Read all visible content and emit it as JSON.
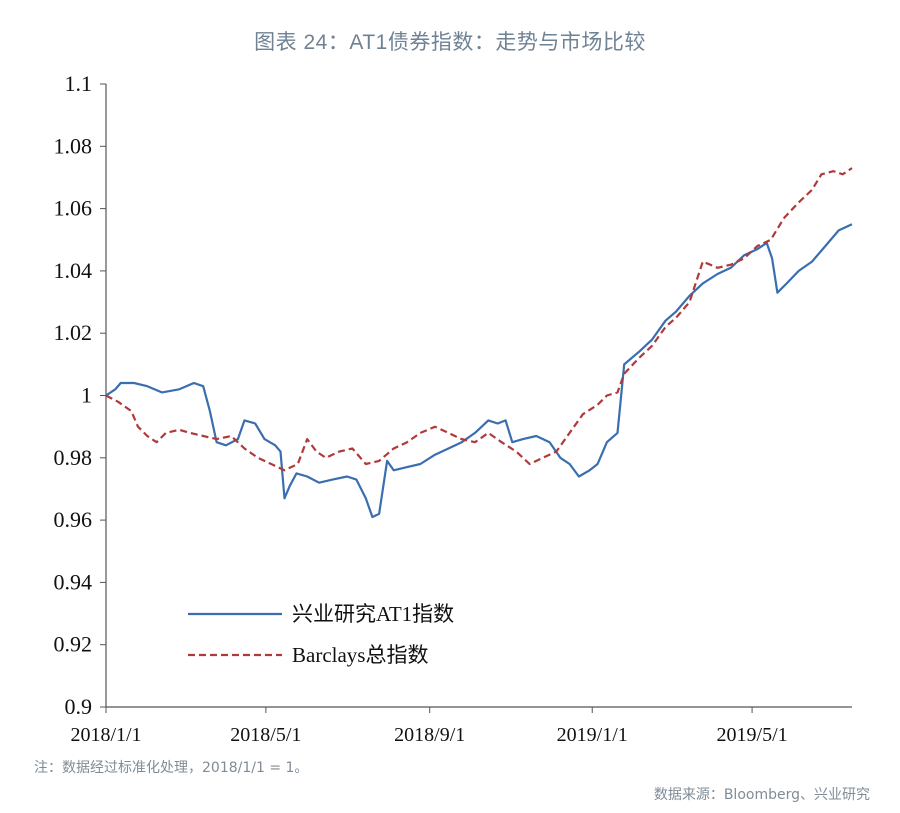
{
  "title": "图表 24：AT1债券指数：走势与市场比较",
  "note": "注：数据经过标准化处理，2018/1/1 = 1。",
  "source": "数据来源：Bloomberg、兴业研究",
  "colors": {
    "series1": "#3a6eb0",
    "series2": "#b03a3a",
    "axis": "#555555",
    "title": "#6f8294"
  },
  "chart_data": {
    "type": "line",
    "xlabel": "",
    "ylabel": "",
    "ylim": [
      0.9,
      1.1
    ],
    "yticks": [
      0.9,
      0.92,
      0.94,
      0.96,
      0.98,
      1,
      1.02,
      1.04,
      1.06,
      1.08,
      1.1
    ],
    "ytick_labels": [
      "0.9",
      "0.92",
      "0.94",
      "0.96",
      "0.98",
      "1",
      "1.02",
      "1.04",
      "1.06",
      "1.08",
      "1.1"
    ],
    "xlim": [
      "2018-01-01",
      "2019-07-15"
    ],
    "xticks": [
      "2018-01-01",
      "2018-05-01",
      "2018-09-01",
      "2019-01-01",
      "2019-05-01"
    ],
    "xtick_labels": [
      "2018/1/1",
      "2018/5/1",
      "2018/9/1",
      "2019/1/1",
      "2019/5/1"
    ],
    "grid": false,
    "legend": "bottom-left",
    "series": [
      {
        "name": "兴业研究AT1指数",
        "style": "solid",
        "points": [
          [
            "2018-01-01",
            1.0
          ],
          [
            "2018-01-08",
            1.002
          ],
          [
            "2018-01-12",
            1.004
          ],
          [
            "2018-01-22",
            1.004
          ],
          [
            "2018-02-01",
            1.003
          ],
          [
            "2018-02-12",
            1.001
          ],
          [
            "2018-02-25",
            1.002
          ],
          [
            "2018-03-08",
            1.004
          ],
          [
            "2018-03-15",
            1.003
          ],
          [
            "2018-03-20",
            0.995
          ],
          [
            "2018-03-25",
            0.985
          ],
          [
            "2018-04-01",
            0.984
          ],
          [
            "2018-04-10",
            0.986
          ],
          [
            "2018-04-15",
            0.992
          ],
          [
            "2018-04-23",
            0.991
          ],
          [
            "2018-04-30",
            0.986
          ],
          [
            "2018-05-08",
            0.984
          ],
          [
            "2018-05-12",
            0.982
          ],
          [
            "2018-05-15",
            0.967
          ],
          [
            "2018-05-19",
            0.971
          ],
          [
            "2018-05-24",
            0.975
          ],
          [
            "2018-06-01",
            0.974
          ],
          [
            "2018-06-10",
            0.972
          ],
          [
            "2018-06-20",
            0.973
          ],
          [
            "2018-07-01",
            0.974
          ],
          [
            "2018-07-08",
            0.973
          ],
          [
            "2018-07-15",
            0.967
          ],
          [
            "2018-07-20",
            0.961
          ],
          [
            "2018-07-25",
            0.962
          ],
          [
            "2018-07-31",
            0.979
          ],
          [
            "2018-08-05",
            0.976
          ],
          [
            "2018-08-15",
            0.977
          ],
          [
            "2018-08-25",
            0.978
          ],
          [
            "2018-09-05",
            0.981
          ],
          [
            "2018-09-15",
            0.983
          ],
          [
            "2018-09-25",
            0.985
          ],
          [
            "2018-10-05",
            0.988
          ],
          [
            "2018-10-15",
            0.992
          ],
          [
            "2018-10-22",
            0.991
          ],
          [
            "2018-10-28",
            0.992
          ],
          [
            "2018-11-02",
            0.985
          ],
          [
            "2018-11-10",
            0.986
          ],
          [
            "2018-11-20",
            0.987
          ],
          [
            "2018-11-30",
            0.985
          ],
          [
            "2018-12-08",
            0.98
          ],
          [
            "2018-12-15",
            0.978
          ],
          [
            "2018-12-22",
            0.974
          ],
          [
            "2018-12-30",
            0.976
          ],
          [
            "2019-01-05",
            0.978
          ],
          [
            "2019-01-12",
            0.985
          ],
          [
            "2019-01-20",
            0.988
          ],
          [
            "2019-01-25",
            1.01
          ],
          [
            "2019-02-05",
            1.014
          ],
          [
            "2019-02-15",
            1.018
          ],
          [
            "2019-02-25",
            1.024
          ],
          [
            "2019-03-05",
            1.027
          ],
          [
            "2019-03-15",
            1.032
          ],
          [
            "2019-03-25",
            1.036
          ],
          [
            "2019-04-05",
            1.039
          ],
          [
            "2019-04-15",
            1.041
          ],
          [
            "2019-04-25",
            1.045
          ],
          [
            "2019-05-05",
            1.047
          ],
          [
            "2019-05-12",
            1.049
          ],
          [
            "2019-05-16",
            1.044
          ],
          [
            "2019-05-20",
            1.033
          ],
          [
            "2019-05-27",
            1.036
          ],
          [
            "2019-06-05",
            1.04
          ],
          [
            "2019-06-15",
            1.043
          ],
          [
            "2019-06-25",
            1.048
          ],
          [
            "2019-07-05",
            1.053
          ],
          [
            "2019-07-15",
            1.055
          ]
        ]
      },
      {
        "name": "Barclays总指数",
        "style": "dashed",
        "points": [
          [
            "2018-01-01",
            1.0
          ],
          [
            "2018-01-10",
            0.998
          ],
          [
            "2018-01-20",
            0.995
          ],
          [
            "2018-01-25",
            0.99
          ],
          [
            "2018-02-01",
            0.987
          ],
          [
            "2018-02-08",
            0.985
          ],
          [
            "2018-02-15",
            0.988
          ],
          [
            "2018-02-25",
            0.989
          ],
          [
            "2018-03-05",
            0.988
          ],
          [
            "2018-03-15",
            0.987
          ],
          [
            "2018-03-25",
            0.986
          ],
          [
            "2018-04-05",
            0.987
          ],
          [
            "2018-04-15",
            0.983
          ],
          [
            "2018-04-25",
            0.98
          ],
          [
            "2018-05-05",
            0.978
          ],
          [
            "2018-05-15",
            0.976
          ],
          [
            "2018-05-25",
            0.978
          ],
          [
            "2018-06-01",
            0.986
          ],
          [
            "2018-06-08",
            0.982
          ],
          [
            "2018-06-15",
            0.98
          ],
          [
            "2018-06-25",
            0.982
          ],
          [
            "2018-07-05",
            0.983
          ],
          [
            "2018-07-15",
            0.978
          ],
          [
            "2018-07-25",
            0.979
          ],
          [
            "2018-08-05",
            0.983
          ],
          [
            "2018-08-15",
            0.985
          ],
          [
            "2018-08-25",
            0.988
          ],
          [
            "2018-09-05",
            0.99
          ],
          [
            "2018-09-15",
            0.988
          ],
          [
            "2018-09-25",
            0.986
          ],
          [
            "2018-10-05",
            0.985
          ],
          [
            "2018-10-15",
            0.988
          ],
          [
            "2018-10-25",
            0.985
          ],
          [
            "2018-11-05",
            0.982
          ],
          [
            "2018-11-15",
            0.978
          ],
          [
            "2018-11-25",
            0.98
          ],
          [
            "2018-12-05",
            0.982
          ],
          [
            "2018-12-15",
            0.988
          ],
          [
            "2018-12-25",
            0.994
          ],
          [
            "2019-01-05",
            0.997
          ],
          [
            "2019-01-12",
            1.0
          ],
          [
            "2019-01-20",
            1.001
          ],
          [
            "2019-01-25",
            1.007
          ],
          [
            "2019-02-05",
            1.012
          ],
          [
            "2019-02-15",
            1.016
          ],
          [
            "2019-02-25",
            1.022
          ],
          [
            "2019-03-05",
            1.025
          ],
          [
            "2019-03-15",
            1.03
          ],
          [
            "2019-03-25",
            1.043
          ],
          [
            "2019-04-05",
            1.041
          ],
          [
            "2019-04-15",
            1.042
          ],
          [
            "2019-04-25",
            1.044
          ],
          [
            "2019-05-05",
            1.048
          ],
          [
            "2019-05-15",
            1.05
          ],
          [
            "2019-05-25",
            1.057
          ],
          [
            "2019-06-05",
            1.062
          ],
          [
            "2019-06-15",
            1.066
          ],
          [
            "2019-06-22",
            1.071
          ],
          [
            "2019-07-01",
            1.072
          ],
          [
            "2019-07-08",
            1.071
          ],
          [
            "2019-07-15",
            1.073
          ]
        ]
      }
    ]
  }
}
